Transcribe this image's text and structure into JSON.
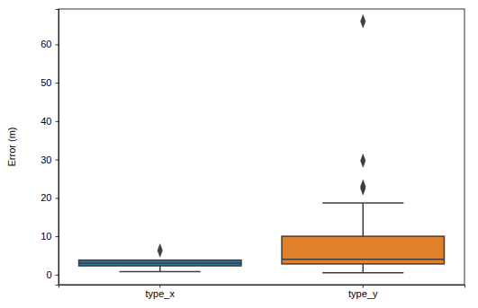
{
  "chart_data": {
    "type": "box",
    "y_label": "Error (m)",
    "categories": [
      "type_x",
      "type_y"
    ],
    "boxes": [
      {
        "whisker_low": 0.8,
        "q1": 2.3,
        "median": 3.0,
        "q3": 3.8,
        "whisker_high": 3.8,
        "outliers": [
          6.3
        ]
      },
      {
        "whisker_low": 0.5,
        "q1": 2.8,
        "median": 4.0,
        "q3": 10.0,
        "whisker_high": 18.7,
        "outliers": [
          22.5,
          23.0,
          29.7,
          66.0
        ]
      }
    ],
    "colors": [
      "#3274a1",
      "#e1812c"
    ],
    "ylim": [
      -2.6,
      69.2
    ],
    "yticks": [
      0,
      10,
      20,
      30,
      40,
      50,
      60
    ]
  }
}
